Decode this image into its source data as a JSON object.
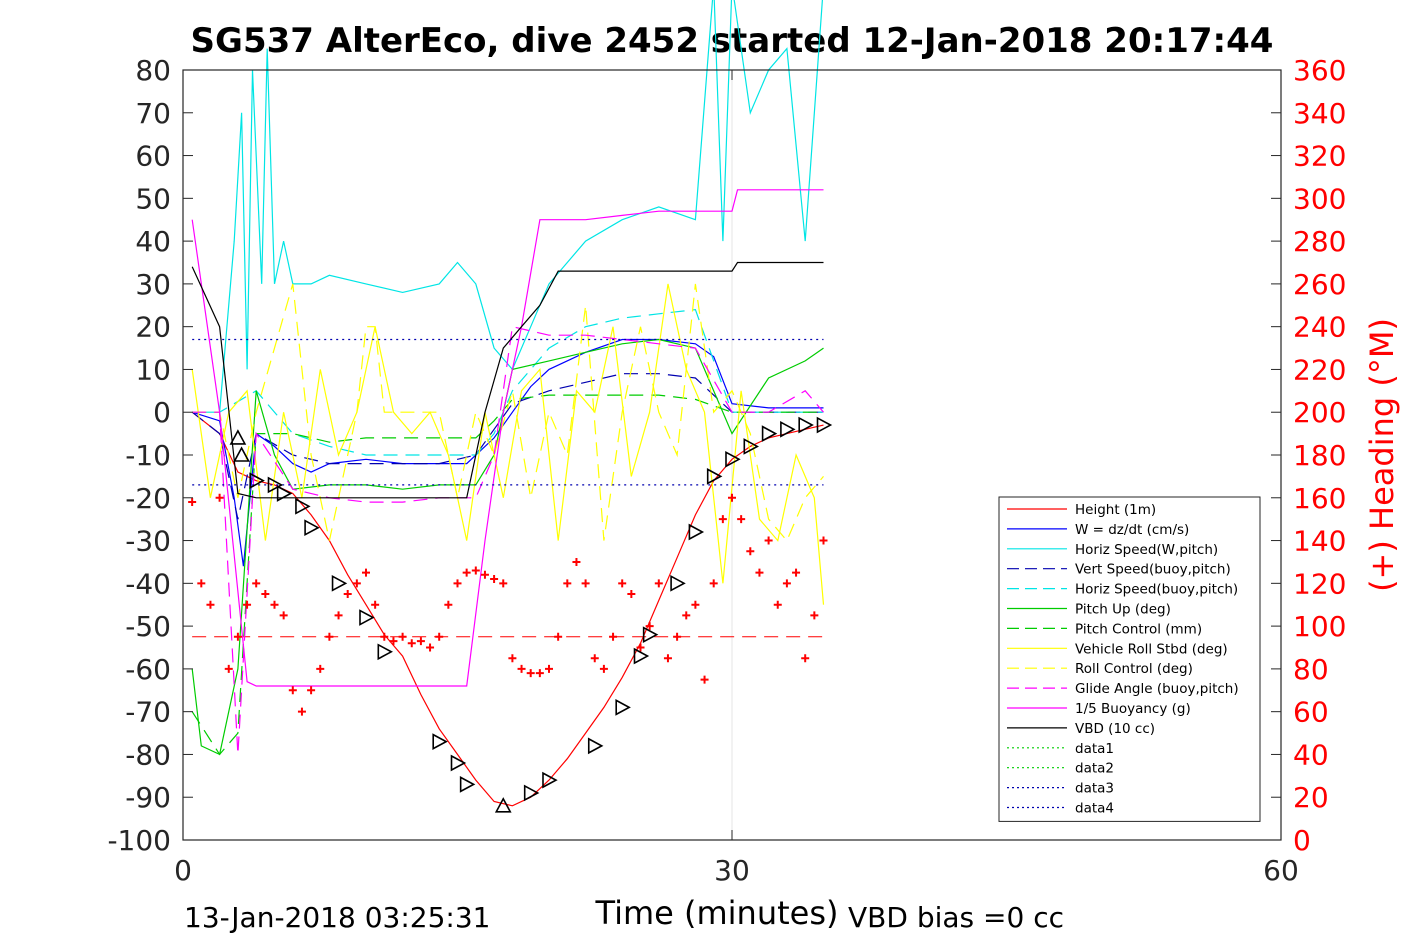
{
  "chart_data": {
    "type": "line",
    "title": "SG537 AlterEco, dive 2452 started 12-Jan-2018 20:17:44",
    "xlabel": "Time (minutes)",
    "ylabel_right": "(+) Heading (°M)",
    "footer_left": "13-Jan-2018 03:25:31",
    "footer_right": "VBD bias =0 cc",
    "xlim": [
      0,
      60
    ],
    "ylim_left": [
      -100,
      80
    ],
    "ylim_right": [
      0,
      360
    ],
    "x_ticks": [
      "0",
      "30",
      "60"
    ],
    "y_ticks_left": [
      "80",
      "70",
      "60",
      "50",
      "40",
      "30",
      "20",
      "10",
      "0",
      "-10",
      "-20",
      "-30",
      "-40",
      "-50",
      "-60",
      "-70",
      "-80",
      "-90",
      "-100"
    ],
    "y_ticks_right": [
      "360",
      "340",
      "320",
      "300",
      "280",
      "260",
      "240",
      "220",
      "200",
      "180",
      "160",
      "140",
      "120",
      "100",
      "80",
      "60",
      "40",
      "20",
      "0"
    ],
    "grid": "x-only at 30",
    "legend_position": "lower-right",
    "colors": {
      "red": "#ff0000",
      "blue": "#0000ff",
      "cyan": "#00e5e5",
      "navy": "#0000b0",
      "green": "#00cc00",
      "yellow": "#ffff00",
      "magenta": "#ff00ff",
      "black": "#000000"
    },
    "series": [
      {
        "name": "Height (1m)",
        "color": "#ff0000",
        "dash": "solid",
        "x": [
          0.5,
          2,
          3,
          4,
          5,
          6,
          7,
          8,
          9,
          10,
          11,
          12,
          13,
          14,
          15,
          16,
          17,
          18,
          19,
          20,
          21,
          22,
          23,
          24,
          25,
          26,
          27,
          28,
          29,
          30,
          31,
          32,
          33,
          34,
          35
        ],
        "y": [
          0,
          -5,
          -14,
          -16,
          -17,
          -19,
          -24,
          -30,
          -38,
          -45,
          -52,
          -57,
          -66,
          -74,
          -80,
          -86,
          -91,
          -92,
          -90,
          -86,
          -81,
          -75,
          -69,
          -62,
          -54,
          -44,
          -34,
          -24,
          -16,
          -11,
          -8,
          -6,
          -5,
          -4,
          -3
        ]
      },
      {
        "name": "W = dz/dt (cm/s)",
        "color": "#0000ff",
        "dash": "solid",
        "x": [
          0.5,
          2,
          2.8,
          3.3,
          4,
          5,
          6,
          7,
          8,
          10,
          12,
          14,
          15.5,
          17,
          18,
          19,
          20,
          22,
          24,
          26,
          28,
          29,
          30,
          32,
          34,
          35
        ],
        "y": [
          0,
          -2,
          -20,
          -36,
          -5,
          -8,
          -12,
          -14,
          -12,
          -11,
          -12,
          -12,
          -12,
          -6,
          0,
          6,
          10,
          14,
          17,
          17,
          16,
          13,
          2,
          1,
          1,
          1
        ]
      },
      {
        "name": "Horiz Speed(W,pitch)",
        "color": "#00e5e5",
        "dash": "solid",
        "x": [
          0.5,
          2,
          2.8,
          3.2,
          3.5,
          3.8,
          4.3,
          4.6,
          5,
          5.5,
          6,
          7,
          8,
          10,
          12,
          14,
          15,
          16,
          17,
          18,
          19,
          20,
          22,
          24,
          26,
          28,
          29,
          29.5,
          30,
          31,
          32,
          33,
          34,
          35
        ],
        "y": [
          0,
          0,
          40,
          70,
          10,
          80,
          30,
          85,
          30,
          40,
          30,
          30,
          32,
          30,
          28,
          30,
          35,
          30,
          15,
          10,
          20,
          30,
          40,
          45,
          48,
          45,
          100,
          40,
          100,
          70,
          80,
          85,
          40,
          100
        ]
      },
      {
        "name": "Vert Speed(buoy,pitch)",
        "color": "#0000b0",
        "dash": "dashed",
        "x": [
          0.5,
          2,
          3,
          4,
          6,
          8,
          10,
          12,
          14,
          16,
          17,
          18,
          20,
          22,
          24,
          26,
          28,
          30,
          35
        ],
        "y": [
          0,
          -5,
          -25,
          -5,
          -10,
          -12,
          -12,
          -12,
          -12,
          -10,
          -4,
          2,
          5,
          7,
          9,
          9,
          8,
          0,
          0
        ]
      },
      {
        "name": "Horiz Speed(buoy,pitch)",
        "color": "#00e5e5",
        "dash": "dashed",
        "x": [
          0.5,
          2,
          4,
          6,
          8,
          10,
          12,
          14,
          16,
          17,
          18,
          20,
          22,
          24,
          26,
          28,
          30,
          35
        ],
        "y": [
          0,
          0,
          5,
          -5,
          -8,
          -10,
          -10,
          -10,
          -10,
          -5,
          5,
          15,
          20,
          22,
          23,
          24,
          0,
          0
        ]
      },
      {
        "name": "Pitch Up (deg)",
        "color": "#00cc00",
        "dash": "solid",
        "x": [
          0.5,
          1,
          2,
          3,
          4,
          5,
          6,
          8,
          10,
          12,
          14,
          16,
          17,
          18,
          20,
          22,
          24,
          26,
          28,
          30,
          32,
          34,
          35
        ],
        "y": [
          -60,
          -78,
          -80,
          -60,
          5,
          -10,
          -18,
          -17,
          -17,
          -18,
          -17,
          -17,
          -10,
          10,
          12,
          14,
          16,
          17,
          15,
          -5,
          8,
          12,
          15
        ]
      },
      {
        "name": "Pitch Control (mm)",
        "color": "#00cc00",
        "dash": "dashed",
        "x": [
          0.5,
          2,
          3,
          4,
          6,
          8,
          10,
          14,
          16,
          17,
          18,
          20,
          22,
          24,
          26,
          28,
          30,
          35
        ],
        "y": [
          -70,
          -80,
          -75,
          -5,
          -5,
          -7,
          -6,
          -6,
          -6,
          -2,
          3,
          4,
          4,
          4,
          4,
          3,
          0,
          0
        ]
      },
      {
        "name": "Vehicle Roll Stbd (deg)",
        "color": "#ffff00",
        "dash": "solid",
        "x": [
          0.5,
          1.5,
          2.5,
          3.5,
          4.5,
          5.5,
          6.5,
          7.5,
          8.5,
          9.5,
          10.5,
          11.5,
          12.5,
          13.5,
          14.5,
          15.5,
          16.5,
          17.5,
          18.5,
          19.5,
          20.5,
          21.5,
          22.5,
          23.5,
          24.5,
          25.5,
          26.5,
          27.5,
          28.5,
          29.5,
          30.5,
          31.5,
          32.5,
          33.5,
          34.5,
          35
        ],
        "y": [
          10,
          -20,
          0,
          5,
          -30,
          0,
          -20,
          10,
          -10,
          0,
          20,
          0,
          -5,
          0,
          -10,
          -30,
          0,
          -20,
          5,
          10,
          -30,
          5,
          0,
          20,
          -15,
          0,
          30,
          10,
          0,
          -40,
          5,
          -25,
          -30,
          -10,
          -20,
          -45
        ]
      },
      {
        "name": "Roll Control (deg)",
        "color": "#ffff00",
        "dash": "dashed",
        "x": [
          0.5,
          2,
          3,
          4,
          6,
          7,
          8,
          9.5,
          10,
          10.5,
          11,
          12,
          14,
          15,
          16,
          17,
          18,
          19,
          20,
          21,
          22,
          23,
          24,
          25,
          26,
          27,
          28,
          29,
          30,
          31,
          32,
          33,
          34,
          35
        ],
        "y": [
          0,
          0,
          -20,
          0,
          30,
          -10,
          -30,
          0,
          20,
          20,
          0,
          0,
          0,
          -20,
          0,
          -10,
          5,
          -20,
          0,
          -10,
          25,
          -30,
          0,
          20,
          0,
          -10,
          30,
          0,
          5,
          -5,
          -25,
          -30,
          -20,
          -15
        ]
      },
      {
        "name": "Glide Angle (buoy,pitch)",
        "color": "#ff00ff",
        "dash": "dashed",
        "x": [
          0.5,
          2,
          3,
          4,
          6,
          8,
          10,
          12,
          14,
          16,
          17,
          18,
          20,
          22,
          24,
          26,
          28,
          30,
          32,
          34,
          35
        ],
        "y": [
          0,
          0,
          -80,
          -5,
          -18,
          -20,
          -21,
          -21,
          -20,
          -20,
          -10,
          20,
          18,
          18,
          17,
          16,
          15,
          0,
          0,
          5,
          0
        ]
      },
      {
        "name": "1/5 Buoyancy (g)",
        "color": "#ff00ff",
        "dash": "solid",
        "x": [
          0.5,
          2,
          3.5,
          4,
          6,
          8,
          10,
          12,
          14,
          15.5,
          16.5,
          17.5,
          18.5,
          19.5,
          20.5,
          22,
          24,
          26,
          28,
          30,
          30.3,
          32,
          34,
          35
        ],
        "y": [
          45,
          0,
          -63,
          -64,
          -64,
          -64,
          -64,
          -64,
          -64,
          -64,
          -30,
          0,
          20,
          45,
          45,
          45,
          46,
          47,
          47,
          47,
          52,
          52,
          52,
          52
        ]
      },
      {
        "name": "VBD (10 cc)",
        "color": "#000000",
        "dash": "solid",
        "x": [
          0.5,
          2,
          3,
          4,
          6,
          8,
          10,
          12,
          14,
          15.5,
          16.5,
          17.5,
          18.5,
          19.5,
          20.5,
          22,
          24,
          26,
          28,
          30,
          30.3,
          32,
          34,
          35
        ],
        "y": [
          34,
          20,
          -19,
          -20,
          -20,
          -20,
          -20,
          -20,
          -20,
          -20,
          0,
          15,
          20,
          25,
          33,
          33,
          33,
          33,
          33,
          33,
          35,
          35,
          35,
          35
        ]
      },
      {
        "name": "data1",
        "color": "#00cc00",
        "dash": "dotted",
        "x": [],
        "y": []
      },
      {
        "name": "data2",
        "color": "#00cc00",
        "dash": "dotted",
        "x": [],
        "y": []
      },
      {
        "name": "data3",
        "color": "#0000b0",
        "dash": "dotted",
        "x": [
          0.5,
          35
        ],
        "y": [
          -17,
          -17
        ]
      },
      {
        "name": "data4",
        "color": "#0000b0",
        "dash": "dotted",
        "x": [
          0.5,
          35
        ],
        "y": [
          17,
          17
        ]
      }
    ],
    "reference_lines": [
      {
        "label": "",
        "color": "#ff0000",
        "dash": "dashed",
        "axis": "right",
        "value": 95,
        "x_range": [
          0.5,
          35
        ]
      }
    ],
    "heading_points": {
      "axis": "right",
      "color": "#ff0000",
      "marker": "+",
      "x": [
        0.5,
        1,
        1.5,
        2,
        2.5,
        3,
        3.5,
        4,
        4.5,
        5,
        5.5,
        6,
        6.5,
        7,
        7.5,
        8,
        8.5,
        9,
        9.5,
        10,
        10.5,
        11,
        11.5,
        12,
        12.5,
        13,
        13.5,
        14,
        14.5,
        15,
        15.5,
        16,
        16.5,
        17,
        17.5,
        18,
        18.5,
        19,
        19.5,
        20,
        20.5,
        21,
        21.5,
        22,
        22.5,
        23,
        23.5,
        24,
        24.5,
        25,
        25.5,
        26,
        26.5,
        27,
        27.5,
        28,
        28.5,
        29,
        29.5,
        30,
        30.5,
        31,
        31.5,
        32,
        32.5,
        33,
        33.5,
        34,
        34.5,
        35
      ],
      "y": [
        158,
        120,
        110,
        160,
        80,
        95,
        110,
        120,
        115,
        110,
        105,
        70,
        60,
        70,
        80,
        95,
        105,
        115,
        120,
        125,
        110,
        95,
        93,
        95,
        92,
        93,
        90,
        95,
        110,
        120,
        125,
        126,
        124,
        122,
        120,
        85,
        80,
        78,
        78,
        80,
        95,
        120,
        130,
        120,
        85,
        80,
        95,
        120,
        115,
        90,
        100,
        120,
        85,
        95,
        105,
        110,
        75,
        120,
        150,
        160,
        150,
        135,
        125,
        140,
        110,
        120,
        125,
        85,
        105,
        140
      ]
    },
    "glider_markers": {
      "color": "#000000",
      "up_x": [
        3,
        3.2,
        17.5
      ],
      "up_y": [
        -6,
        -10,
        -92
      ],
      "down_x": [
        4,
        5,
        5.5,
        6.5,
        7,
        8.5,
        10,
        11,
        14,
        15,
        15.5,
        19,
        20,
        22.5,
        24,
        25,
        25.5,
        27,
        28,
        29,
        30,
        31,
        32,
        33,
        34,
        35
      ],
      "down_y": [
        -16,
        -17,
        -19,
        -22,
        -27,
        -40,
        -48,
        -56,
        -77,
        -82,
        -87,
        -89,
        -86,
        -78,
        -69,
        -57,
        -52,
        -40,
        -28,
        -15,
        -11,
        -8,
        -5,
        -4,
        -3,
        -3
      ]
    }
  }
}
